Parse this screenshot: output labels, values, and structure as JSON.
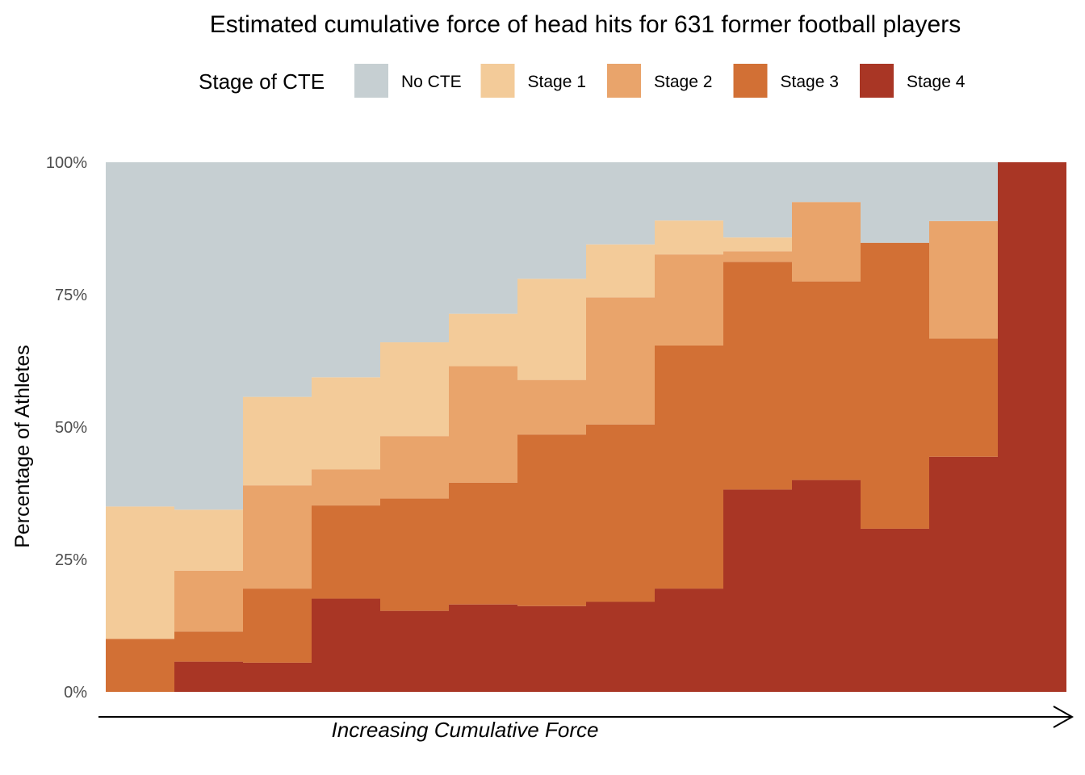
{
  "chart_data": {
    "type": "bar",
    "stacking": "percent",
    "title": "Estimated cumulative force of head hits for 631 former football players",
    "xlabel": "Increasing Cumulative Force",
    "ylabel": "Percentage of Athletes",
    "ylim": [
      0,
      100
    ],
    "yticks": [
      0,
      25,
      50,
      75,
      100
    ],
    "ytick_labels": [
      "0%",
      "25%",
      "50%",
      "75%",
      "100%"
    ],
    "grid": false,
    "legend": {
      "title": "Stage of CTE",
      "position": "top",
      "entries": [
        "No CTE",
        "Stage 1",
        "Stage 2",
        "Stage 3",
        "Stage 4"
      ]
    },
    "bins": 14,
    "series": [
      {
        "name": "Stage 4",
        "color": "#a93625",
        "values": [
          0,
          5.7,
          5.5,
          17.6,
          15.3,
          16.5,
          16.2,
          17.0,
          19.5,
          38.2,
          40.0,
          30.8,
          44.4,
          100
        ]
      },
      {
        "name": "Stage 3",
        "color": "#d27035",
        "values": [
          10.0,
          5.7,
          14.0,
          17.6,
          21.2,
          23.0,
          32.4,
          33.5,
          45.9,
          43.0,
          37.5,
          54.0,
          22.3,
          0
        ]
      },
      {
        "name": "Stage 2",
        "color": "#e9a46b",
        "values": [
          0,
          11.5,
          19.5,
          6.8,
          11.8,
          22.0,
          10.3,
          24.0,
          17.2,
          2.0,
          15.0,
          0,
          22.2,
          0
        ]
      },
      {
        "name": "Stage 1",
        "color": "#f3cb99",
        "values": [
          25.0,
          11.5,
          16.7,
          17.4,
          17.7,
          9.9,
          19.1,
          10.0,
          6.4,
          2.6,
          0,
          0,
          0,
          0
        ]
      },
      {
        "name": "No CTE",
        "color": "#c6cfd2",
        "values": [
          65.0,
          65.6,
          44.3,
          40.6,
          34.0,
          28.6,
          22.0,
          15.5,
          11.0,
          14.2,
          7.5,
          15.2,
          11.1,
          0
        ]
      }
    ]
  }
}
